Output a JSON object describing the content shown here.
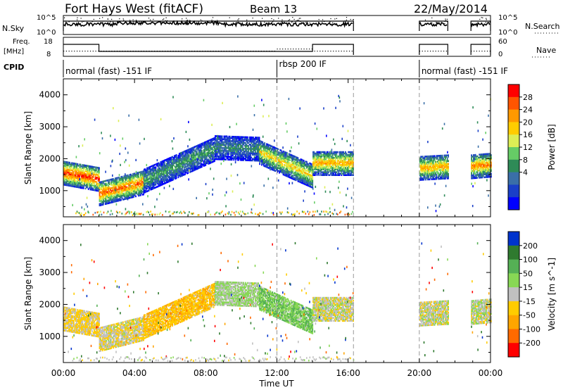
{
  "header": {
    "title": "Fort Hays West (fitACF)",
    "beam": "Beam 13",
    "date": "22/May/2014"
  },
  "status_panels": {
    "nsky_label": "N.Sky",
    "nsky_ticks": [
      "10^5",
      "10^0"
    ],
    "nsearch_label": "N.Search",
    "nsearch_ticks": [
      "10^5",
      "10^0"
    ],
    "freq_label": "Freq.",
    "freq_unit": "[MHz]",
    "freq_ticks": [
      "18",
      "8"
    ],
    "nave_label": "Nave",
    "nave_ticks": [
      "60",
      "0"
    ],
    "cpid_label": "CPID",
    "cpid_segments": [
      {
        "text": "normal (fast) -151 IF",
        "start_h": 0.0
      },
      {
        "text": "rbsp 200 IF",
        "start_h": 12.0
      },
      {
        "text": "normal (fast) -151 IF",
        "start_h": 20.0
      }
    ]
  },
  "power_colorbar": {
    "label": "Power [dB]",
    "ticks": [
      "28",
      "24",
      "20",
      "16",
      "12",
      "8",
      "4"
    ],
    "colors": [
      "#ff0000",
      "#ff5500",
      "#ff9900",
      "#ffcc00",
      "#ddee55",
      "#66cc66",
      "#2e8b57",
      "#3a6fa8",
      "#1a3fc8",
      "#0000ff"
    ]
  },
  "velocity_colorbar": {
    "label": "Velocity [m s^-1]",
    "ticks": [
      "200",
      "100",
      "50",
      "15",
      "-15",
      "-50",
      "-100",
      "-200"
    ],
    "colors": [
      "#0033cc",
      "#2f7a2f",
      "#55b055",
      "#88d855",
      "#c0c0c0",
      "#ffcc00",
      "#ffa500",
      "#ff6a00",
      "#ff0000"
    ]
  },
  "axes": {
    "ylabel": "Slant Range [km]",
    "yticks": [
      "4000",
      "3000",
      "2000",
      "1000"
    ],
    "xlabel": "Time UT",
    "xticks": [
      "00:00",
      "04:00",
      "08:00",
      "12:00",
      "16:00",
      "20:00",
      "00:00"
    ]
  },
  "chart_data": [
    {
      "type": "heatmap",
      "name": "Power",
      "xlabel": "Time UT",
      "ylabel": "Slant Range [km]",
      "xlim_hours": [
        0,
        24
      ],
      "ylim": [
        180,
        4500
      ],
      "colorbar_range_db": [
        0,
        30
      ],
      "data_gaps_hours": [
        [
          16.3,
          20.0
        ],
        [
          21.6,
          22.9
        ]
      ],
      "echo_bands": [
        {
          "t_start": 0.0,
          "t_end": 2.0,
          "range_start_km": 1550,
          "range_end_km": 1350,
          "peak_db": 28
        },
        {
          "t_start": 2.0,
          "t_end": 4.5,
          "range_start_km": 900,
          "range_end_km": 1250,
          "peak_db": 26
        },
        {
          "t_start": 4.5,
          "t_end": 8.5,
          "range_start_km": 1300,
          "range_end_km": 2300,
          "peak_db": 12
        },
        {
          "t_start": 8.5,
          "t_end": 11.0,
          "range_start_km": 2350,
          "range_end_km": 2300,
          "peak_db": 10
        },
        {
          "t_start": 11.0,
          "t_end": 14.0,
          "range_start_km": 2200,
          "range_end_km": 1450,
          "peak_db": 20
        },
        {
          "t_start": 14.0,
          "t_end": 16.3,
          "range_start_km": 1850,
          "range_end_km": 1850,
          "peak_db": 22
        },
        {
          "t_start": 20.0,
          "t_end": 21.6,
          "range_start_km": 1700,
          "range_end_km": 1750,
          "peak_db": 22
        },
        {
          "t_start": 22.9,
          "t_end": 24.0,
          "range_start_km": 1750,
          "range_end_km": 1800,
          "peak_db": 24
        }
      ]
    },
    {
      "type": "heatmap",
      "name": "Velocity",
      "xlabel": "Time UT",
      "ylabel": "Slant Range [km]",
      "xlim_hours": [
        0,
        24
      ],
      "ylim": [
        180,
        4500
      ],
      "colorbar_range_ms": [
        -200,
        200
      ],
      "data_gaps_hours": [
        [
          16.3,
          20.0
        ],
        [
          21.6,
          22.9
        ]
      ],
      "echo_bands": [
        {
          "t_start": 0.0,
          "t_end": 2.0,
          "range_start_km": 1550,
          "range_end_km": 1350,
          "velocity_ms": -20
        },
        {
          "t_start": 2.0,
          "t_end": 4.5,
          "range_start_km": 900,
          "range_end_km": 1250,
          "velocity_ms": -10
        },
        {
          "t_start": 4.5,
          "t_end": 8.5,
          "range_start_km": 1300,
          "range_end_km": 2300,
          "velocity_ms": -40
        },
        {
          "t_start": 8.5,
          "t_end": 11.0,
          "range_start_km": 2350,
          "range_end_km": 2300,
          "velocity_ms": 20
        },
        {
          "t_start": 11.0,
          "t_end": 14.0,
          "range_start_km": 2200,
          "range_end_km": 1450,
          "velocity_ms": 40
        },
        {
          "t_start": 14.0,
          "t_end": 16.3,
          "range_start_km": 1850,
          "range_end_km": 1850,
          "velocity_ms": 0
        },
        {
          "t_start": 20.0,
          "t_end": 21.6,
          "range_start_km": 1700,
          "range_end_km": 1750,
          "velocity_ms": 0
        },
        {
          "t_start": 22.9,
          "t_end": 24.0,
          "range_start_km": 1750,
          "range_end_km": 1800,
          "velocity_ms": 5
        }
      ]
    }
  ]
}
